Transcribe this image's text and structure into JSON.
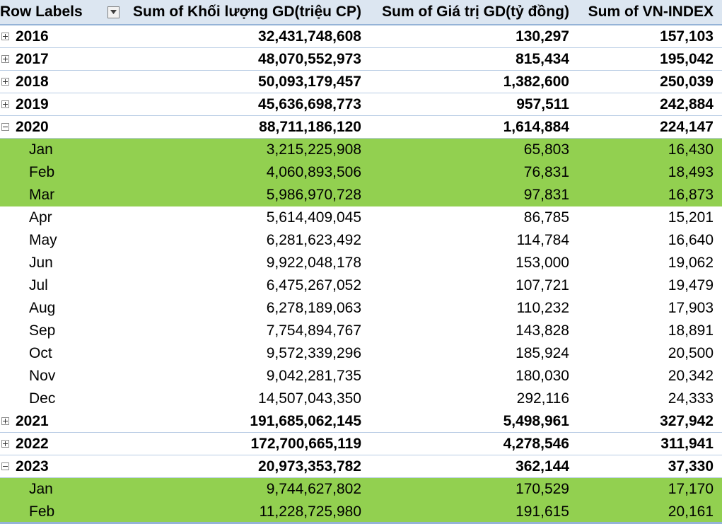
{
  "header": {
    "row_labels": "Row Labels",
    "col1": "Sum of Khối lượng GD(triệu CP)",
    "col2": "Sum of Giá trị GD(tỷ đồng)",
    "col3": "Sum of VN-INDEX"
  },
  "rows": [
    {
      "label": "2016",
      "v1": "32,431,748,608",
      "v2": "130,297",
      "v3": "157,103"
    },
    {
      "label": "2017",
      "v1": "48,070,552,973",
      "v2": "815,434",
      "v3": "195,042"
    },
    {
      "label": "2018",
      "v1": "50,093,179,457",
      "v2": "1,382,600",
      "v3": "250,039"
    },
    {
      "label": "2019",
      "v1": "45,636,698,773",
      "v2": "957,511",
      "v3": "242,884"
    },
    {
      "label": "2020",
      "v1": "88,711,186,120",
      "v2": "1,614,884",
      "v3": "224,147"
    },
    {
      "label": "Jan",
      "v1": "3,215,225,908",
      "v2": "65,803",
      "v3": "16,430"
    },
    {
      "label": "Feb",
      "v1": "4,060,893,506",
      "v2": "76,831",
      "v3": "18,493"
    },
    {
      "label": "Mar",
      "v1": "5,986,970,728",
      "v2": "97,831",
      "v3": "16,873"
    },
    {
      "label": "Apr",
      "v1": "5,614,409,045",
      "v2": "86,785",
      "v3": "15,201"
    },
    {
      "label": "May",
      "v1": "6,281,623,492",
      "v2": "114,784",
      "v3": "16,640"
    },
    {
      "label": "Jun",
      "v1": "9,922,048,178",
      "v2": "153,000",
      "v3": "19,062"
    },
    {
      "label": "Jul",
      "v1": "6,475,267,052",
      "v2": "107,721",
      "v3": "19,479"
    },
    {
      "label": "Aug",
      "v1": "6,278,189,063",
      "v2": "110,232",
      "v3": "17,903"
    },
    {
      "label": "Sep",
      "v1": "7,754,894,767",
      "v2": "143,828",
      "v3": "18,891"
    },
    {
      "label": "Oct",
      "v1": "9,572,339,296",
      "v2": "185,924",
      "v3": "20,500"
    },
    {
      "label": "Nov",
      "v1": "9,042,281,735",
      "v2": "180,030",
      "v3": "20,342"
    },
    {
      "label": "Dec",
      "v1": "14,507,043,350",
      "v2": "292,116",
      "v3": "24,333"
    },
    {
      "label": "2021",
      "v1": "191,685,062,145",
      "v2": "5,498,961",
      "v3": "327,942"
    },
    {
      "label": "2022",
      "v1": "172,700,665,119",
      "v2": "4,278,546",
      "v3": "311,941"
    },
    {
      "label": "2023",
      "v1": "20,973,353,782",
      "v2": "362,144",
      "v3": "37,330"
    },
    {
      "label": "Jan",
      "v1": "9,744,627,802",
      "v2": "170,529",
      "v3": "17,170"
    },
    {
      "label": "Feb",
      "v1": "11,228,725,980",
      "v2": "191,615",
      "v3": "20,161"
    }
  ],
  "colors": {
    "highlight": "#92d050",
    "header_bg": "#dce6f1"
  }
}
